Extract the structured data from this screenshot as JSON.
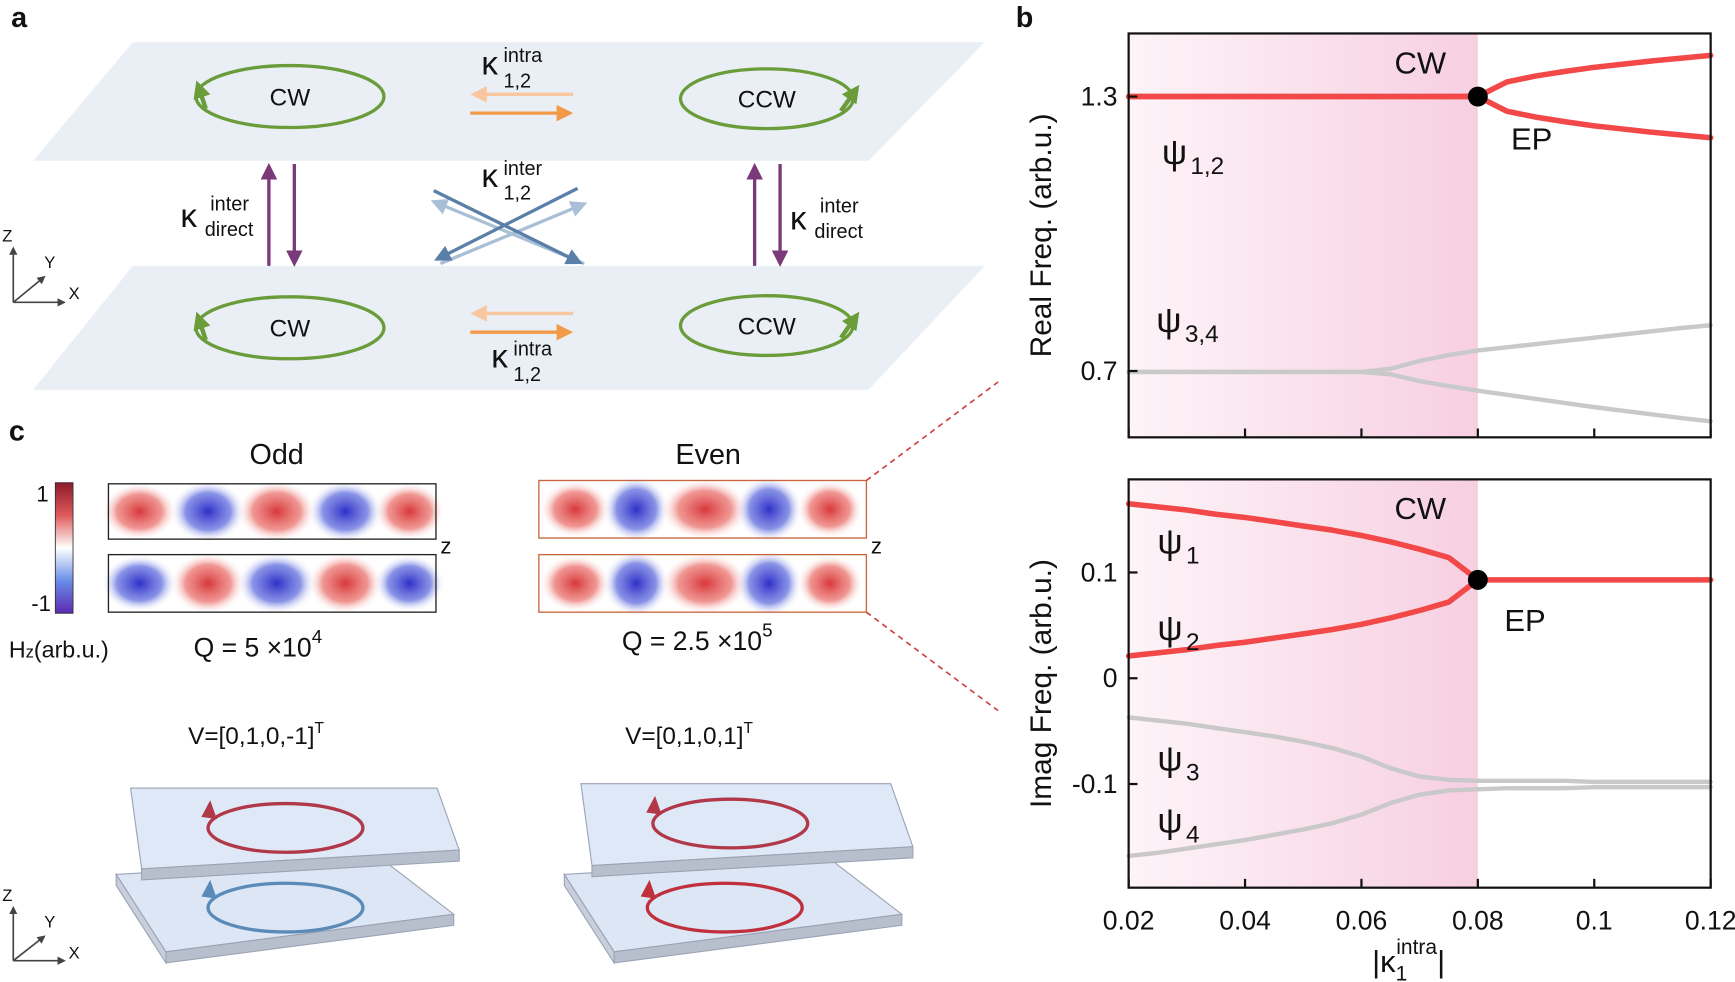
{
  "panel_labels": [
    "a",
    "b",
    "c"
  ],
  "schematic": {
    "rings": [
      "CW",
      "CCW",
      "CW",
      "CCW"
    ],
    "kappa": "κ",
    "intra": "intra",
    "inter": "inter",
    "pair": "1,2",
    "direct": "direct",
    "axes": [
      "Z",
      "Y",
      "X"
    ]
  },
  "fields": {
    "colorbar_ticks": [
      1,
      -1
    ],
    "colorbar_label": "H",
    "colorbar_label_sub": "z",
    "colorbar_label_end": "(arb.u.)",
    "axis": "z",
    "modes": [
      {
        "name": "Odd",
        "q": "Q = 5 ×10",
        "q_exp": "4",
        "v": "V=[0,1,0,-1]",
        "v_sup": "T"
      },
      {
        "name": "Even",
        "q": "Q = 2.5 ×10",
        "q_exp": "5",
        "v": "V=[0,1,0,1]",
        "v_sup": "T"
      }
    ]
  },
  "chart_data": [
    {
      "type": "line",
      "ylabel": "Real Freq. (arb.u.)",
      "x": [
        0.02,
        0.025,
        0.03,
        0.035,
        0.04,
        0.045,
        0.05,
        0.055,
        0.06,
        0.065,
        0.07,
        0.075,
        0.08,
        0.085,
        0.09,
        0.095,
        0.1,
        0.105,
        0.11,
        0.115,
        0.12
      ],
      "xlim": [
        0.02,
        0.12
      ],
      "xticks": [
        0.02,
        0.04,
        0.06,
        0.08,
        0.1,
        0.12
      ],
      "show_xtick_labels": false,
      "ylim": [
        0.555,
        1.438
      ],
      "yticks": [
        0.7,
        1.3
      ],
      "region_label": "CW",
      "ep": {
        "x": 0.08,
        "y": 1.3,
        "label": "EP"
      },
      "annotations": [
        {
          "text": "ψ",
          "sub": "1,2"
        },
        {
          "text": "ψ",
          "sub": "3,4"
        }
      ],
      "series": [
        {
          "color": "#f24848",
          "values": [
            1.3,
            1.3,
            1.3,
            1.3,
            1.3,
            1.3,
            1.3,
            1.3,
            1.3,
            1.3,
            1.3,
            1.3,
            1.3,
            1.332,
            1.345,
            1.355,
            1.364,
            1.371,
            1.378,
            1.384,
            1.39
          ]
        },
        {
          "color": "#f24848",
          "values": [
            1.3,
            1.3,
            1.3,
            1.3,
            1.3,
            1.3,
            1.3,
            1.3,
            1.3,
            1.3,
            1.3,
            1.3,
            1.3,
            1.268,
            1.255,
            1.245,
            1.236,
            1.229,
            1.222,
            1.216,
            1.21
          ]
        },
        {
          "color": "#c9c9c9",
          "values": [
            0.698,
            0.698,
            0.698,
            0.698,
            0.698,
            0.698,
            0.698,
            0.698,
            0.698,
            0.705,
            0.722,
            0.735,
            0.745,
            0.752,
            0.759,
            0.766,
            0.773,
            0.78,
            0.787,
            0.794,
            0.8
          ]
        },
        {
          "color": "#c9c9c9",
          "values": [
            0.698,
            0.698,
            0.698,
            0.698,
            0.698,
            0.698,
            0.698,
            0.698,
            0.698,
            0.693,
            0.678,
            0.667,
            0.657,
            0.648,
            0.639,
            0.63,
            0.621,
            0.613,
            0.605,
            0.597,
            0.59
          ]
        }
      ]
    },
    {
      "type": "line",
      "ylabel": "Imag Freq. (arb.u.)",
      "x": [
        0.02,
        0.025,
        0.03,
        0.035,
        0.04,
        0.045,
        0.05,
        0.055,
        0.06,
        0.065,
        0.07,
        0.075,
        0.08,
        0.085,
        0.09,
        0.095,
        0.1,
        0.105,
        0.11,
        0.115,
        0.12
      ],
      "xlim": [
        0.02,
        0.12
      ],
      "xticks": [
        0.02,
        0.04,
        0.06,
        0.08,
        0.1,
        0.12
      ],
      "show_xtick_labels": true,
      "xlabel": {
        "main": "|κ",
        "sub": "1",
        "sup": "intra",
        "end": "|"
      },
      "ylim": [
        -0.198,
        0.188
      ],
      "yticks": [
        0.1,
        0,
        -0.1
      ],
      "region_label": "CW",
      "ep": {
        "x": 0.08,
        "y": 0.093,
        "label": "EP"
      },
      "annotations": [
        {
          "text": "ψ",
          "sub": "1"
        },
        {
          "text": "ψ",
          "sub": "2"
        },
        {
          "text": "ψ",
          "sub": "3"
        },
        {
          "text": "ψ",
          "sub": "4"
        }
      ],
      "series": [
        {
          "color": "#f24848",
          "values": [
            0.165,
            0.162,
            0.159,
            0.155,
            0.152,
            0.148,
            0.144,
            0.14,
            0.135,
            0.129,
            0.122,
            0.114,
            0.093,
            0.093,
            0.093,
            0.093,
            0.093,
            0.093,
            0.093,
            0.093,
            0.093
          ]
        },
        {
          "color": "#f24848",
          "values": [
            0.021,
            0.024,
            0.027,
            0.031,
            0.034,
            0.038,
            0.042,
            0.046,
            0.051,
            0.057,
            0.064,
            0.072,
            0.093,
            null,
            null,
            null,
            null,
            null,
            null,
            null,
            null
          ]
        },
        {
          "color": "#c9c9c9",
          "values": [
            -0.037,
            -0.04,
            -0.043,
            -0.047,
            -0.051,
            -0.055,
            -0.06,
            -0.066,
            -0.074,
            -0.085,
            -0.093,
            -0.096,
            -0.097,
            -0.097,
            -0.097,
            -0.097,
            -0.098,
            -0.098,
            -0.098,
            -0.098,
            -0.098
          ]
        },
        {
          "color": "#c9c9c9",
          "values": [
            -0.168,
            -0.165,
            -0.161,
            -0.157,
            -0.153,
            -0.148,
            -0.143,
            -0.137,
            -0.129,
            -0.118,
            -0.11,
            -0.106,
            -0.105,
            -0.104,
            -0.104,
            -0.104,
            -0.103,
            -0.103,
            -0.103,
            -0.103,
            -0.103
          ]
        }
      ]
    }
  ]
}
